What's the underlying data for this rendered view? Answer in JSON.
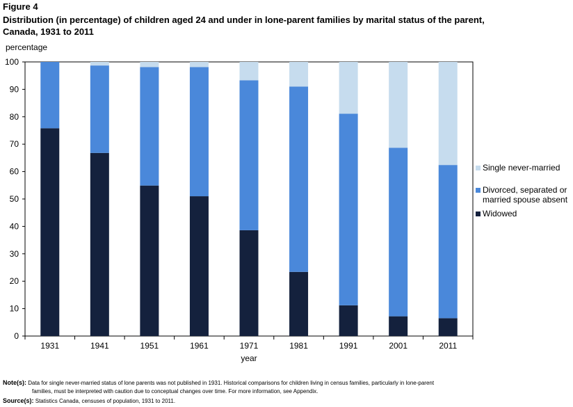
{
  "figure_label": "Figure 4",
  "title_line1": "Distribution (in percentage) of children aged 24 and under in lone-parent families by marital status of the parent,",
  "title_line2": "Canada, 1931 to 2011",
  "note": {
    "label": "Note(s):",
    "line1": "Data for single never-married status of lone parents was not published in 1931. Historical comparisons for children living in census families, particularly in lone-parent",
    "line2": "families, must be interpreted with caution due to conceptual changes over time. For more information, see Appendix."
  },
  "source": {
    "label": "Source(s):",
    "text": "Statistics Canada, censuses of population, 1931 to 2011."
  },
  "colors": {
    "widowed": "#14213D",
    "divorced": "#4A88DA",
    "single": "#C6DCEE"
  },
  "chart_data": {
    "type": "bar",
    "stacked": true,
    "title": "Distribution (in percentage) of children aged 24 and under in lone-parent families by marital status of the parent, Canada, 1931 to 2011",
    "xlabel": "year",
    "ylabel": "percentage",
    "ylim": [
      0,
      100
    ],
    "yticks": [
      "0",
      "10",
      "20",
      "30",
      "40",
      "50",
      "60",
      "70",
      "80",
      "90",
      "100"
    ],
    "categories": [
      "1931",
      "1941",
      "1951",
      "1961",
      "1971",
      "1981",
      "1991",
      "2001",
      "2011"
    ],
    "series": [
      {
        "name": "Widowed",
        "values": [
          75.8,
          66.8,
          54.9,
          51.0,
          38.6,
          23.4,
          11.2,
          7.2,
          6.5
        ]
      },
      {
        "name": "Divorced, separated or married spouse absent",
        "values": [
          24.2,
          31.9,
          43.2,
          47.1,
          54.7,
          67.6,
          69.9,
          61.5,
          55.9
        ]
      },
      {
        "name": "Single never-married",
        "values": [
          0,
          1.3,
          1.9,
          1.9,
          6.7,
          9.0,
          18.9,
          31.3,
          37.6
        ]
      }
    ],
    "legend": {
      "position": "right",
      "entries": [
        "Single never-married",
        "Divorced, separated or married spouse absent",
        "Widowed"
      ],
      "wrapped_lines": [
        [
          "Single never-married"
        ],
        [
          "Divorced, separated or",
          "married spouse absent"
        ],
        [
          "Widowed"
        ]
      ]
    },
    "grid": false
  }
}
